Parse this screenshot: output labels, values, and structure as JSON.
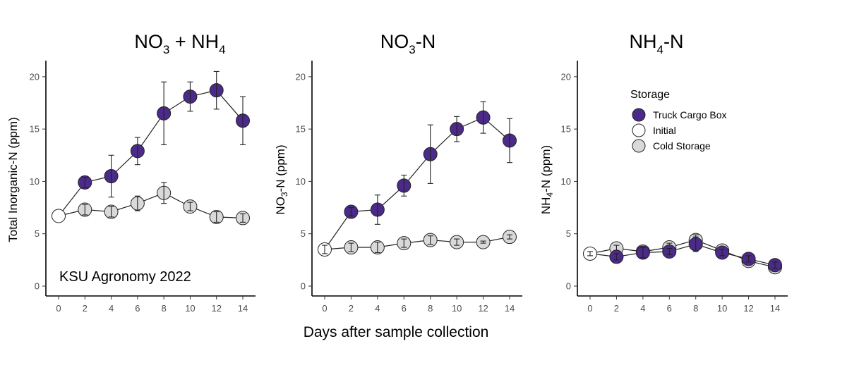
{
  "xlabel": "Days after sample collection",
  "watermark": "KSU Agronomy 2022",
  "legend": {
    "title": "Storage",
    "items": [
      {
        "label": "Truck Cargo Box",
        "color": "#4b2a8a"
      },
      {
        "label": "Initial",
        "color": "#ffffff"
      },
      {
        "label": "Cold Storage",
        "color": "#d9d9d9"
      }
    ]
  },
  "chart_data": [
    {
      "type": "line",
      "title_main": "NO",
      "title_sub1": "3",
      "title_mid": " + NH",
      "title_sub2": "4",
      "ylabel": "Total Inorganic-N  (ppm)",
      "xlim": [
        0,
        14
      ],
      "ylim": [
        0,
        21
      ],
      "xticks": [
        0,
        2,
        4,
        6,
        8,
        10,
        12,
        14
      ],
      "yticks": [
        0,
        5,
        10,
        15,
        20
      ],
      "initial": {
        "x": 0,
        "y": 6.7
      },
      "series": [
        {
          "name": "Truck Cargo Box",
          "color": "#4b2a8a",
          "points": [
            {
              "x": 0,
              "y": 6.7,
              "err": 0
            },
            {
              "x": 2,
              "y": 9.9,
              "err": 0.5
            },
            {
              "x": 4,
              "y": 10.5,
              "err": 2.0
            },
            {
              "x": 6,
              "y": 12.9,
              "err": 1.3
            },
            {
              "x": 8,
              "y": 16.5,
              "err": 3.0
            },
            {
              "x": 10,
              "y": 18.1,
              "err": 1.4
            },
            {
              "x": 12,
              "y": 18.7,
              "err": 1.8
            },
            {
              "x": 14,
              "y": 15.8,
              "err": 2.3
            }
          ]
        },
        {
          "name": "Cold Storage",
          "color": "#d9d9d9",
          "points": [
            {
              "x": 0,
              "y": 6.7,
              "err": 0
            },
            {
              "x": 2,
              "y": 7.3,
              "err": 0.5
            },
            {
              "x": 4,
              "y": 7.1,
              "err": 0.5
            },
            {
              "x": 6,
              "y": 7.9,
              "err": 0.7
            },
            {
              "x": 8,
              "y": 8.9,
              "err": 1.0
            },
            {
              "x": 10,
              "y": 7.6,
              "err": 0.4
            },
            {
              "x": 12,
              "y": 6.6,
              "err": 0.5
            },
            {
              "x": 14,
              "y": 6.5,
              "err": 0.4
            }
          ]
        }
      ]
    },
    {
      "type": "line",
      "title_main": "NO",
      "title_sub1": "3",
      "title_mid": "-N",
      "title_sub2": "",
      "ylabel": "NO3-N  (ppm)",
      "xlim": [
        0,
        14
      ],
      "ylim": [
        0,
        21
      ],
      "xticks": [
        0,
        2,
        4,
        6,
        8,
        10,
        12,
        14
      ],
      "yticks": [
        0,
        5,
        10,
        15,
        20
      ],
      "initial": {
        "x": 0,
        "y": 3.5
      },
      "series": [
        {
          "name": "Truck Cargo Box",
          "color": "#4b2a8a",
          "points": [
            {
              "x": 0,
              "y": 3.5,
              "err": 0.4
            },
            {
              "x": 2,
              "y": 7.1,
              "err": 0.4
            },
            {
              "x": 4,
              "y": 7.3,
              "err": 1.4
            },
            {
              "x": 6,
              "y": 9.6,
              "err": 1.0
            },
            {
              "x": 8,
              "y": 12.6,
              "err": 2.8
            },
            {
              "x": 10,
              "y": 15.0,
              "err": 1.2
            },
            {
              "x": 12,
              "y": 16.1,
              "err": 1.5
            },
            {
              "x": 14,
              "y": 13.9,
              "err": 2.1
            }
          ]
        },
        {
          "name": "Cold Storage",
          "color": "#d9d9d9",
          "points": [
            {
              "x": 0,
              "y": 3.5,
              "err": 0.4
            },
            {
              "x": 2,
              "y": 3.7,
              "err": 0.4
            },
            {
              "x": 4,
              "y": 3.7,
              "err": 0.5
            },
            {
              "x": 6,
              "y": 4.1,
              "err": 0.4
            },
            {
              "x": 8,
              "y": 4.4,
              "err": 0.4
            },
            {
              "x": 10,
              "y": 4.2,
              "err": 0.3
            },
            {
              "x": 12,
              "y": 4.2,
              "err": 0.1
            },
            {
              "x": 14,
              "y": 4.7,
              "err": 0.2
            }
          ]
        }
      ]
    },
    {
      "type": "line",
      "title_main": "NH",
      "title_sub1": "4",
      "title_mid": "-N",
      "title_sub2": "",
      "ylabel": "NH4-N  (ppm)",
      "xlim": [
        0,
        14
      ],
      "ylim": [
        0,
        21
      ],
      "xticks": [
        0,
        2,
        4,
        6,
        8,
        10,
        12,
        14
      ],
      "yticks": [
        0,
        5,
        10,
        15,
        20
      ],
      "initial": {
        "x": 0,
        "y": 3.1
      },
      "series": [
        {
          "name": "Truck Cargo Box",
          "color": "#4b2a8a",
          "points": [
            {
              "x": 0,
              "y": 3.1,
              "err": 0.2
            },
            {
              "x": 2,
              "y": 2.8,
              "err": 0.3
            },
            {
              "x": 4,
              "y": 3.2,
              "err": 0.5
            },
            {
              "x": 6,
              "y": 3.3,
              "err": 0.3
            },
            {
              "x": 8,
              "y": 4.0,
              "err": 0.7
            },
            {
              "x": 10,
              "y": 3.2,
              "err": 0.3
            },
            {
              "x": 12,
              "y": 2.6,
              "err": 0.3
            },
            {
              "x": 14,
              "y": 2.0,
              "err": 0.3
            }
          ]
        },
        {
          "name": "Cold Storage",
          "color": "#d9d9d9",
          "points": [
            {
              "x": 0,
              "y": 3.1,
              "err": 0.2
            },
            {
              "x": 2,
              "y": 3.6,
              "err": 0.3
            },
            {
              "x": 4,
              "y": 3.3,
              "err": 0.3
            },
            {
              "x": 6,
              "y": 3.7,
              "err": 0.4
            },
            {
              "x": 8,
              "y": 4.4,
              "err": 0.5
            },
            {
              "x": 10,
              "y": 3.4,
              "err": 0.3
            },
            {
              "x": 12,
              "y": 2.4,
              "err": 0.3
            },
            {
              "x": 14,
              "y": 1.8,
              "err": 0.3
            }
          ]
        }
      ]
    }
  ]
}
